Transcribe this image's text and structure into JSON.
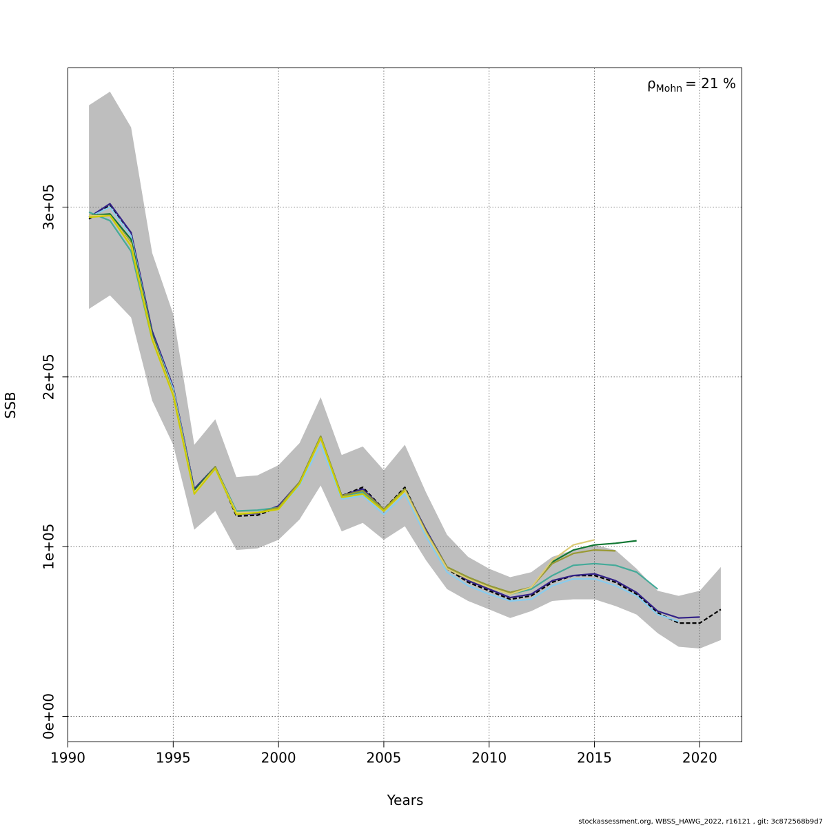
{
  "chart_data": {
    "type": "line",
    "title": "",
    "xlabel": "Years",
    "ylabel": "SSB",
    "xlim": [
      1990,
      2022
    ],
    "ylim": [
      -15000,
      382000
    ],
    "x_ticks": [
      1990,
      1995,
      2000,
      2005,
      2010,
      2015,
      2020
    ],
    "x_tick_labels": [
      "1990",
      "1995",
      "2000",
      "2005",
      "2010",
      "2015",
      "2020"
    ],
    "y_ticks": [
      0,
      100000,
      200000,
      300000
    ],
    "y_tick_labels": [
      "0e+00",
      "1e+05",
      "2e+05",
      "3e+05"
    ],
    "grid": true,
    "annotation": {
      "rho_symbol": "ρ",
      "rho_subscript": "Mohn",
      "rho_value": "= 21 %"
    },
    "confidence_band": {
      "color": "#bebebe",
      "x": [
        1991,
        1992,
        1993,
        1994,
        1995,
        1996,
        1997,
        1998,
        1999,
        2000,
        2001,
        2002,
        2003,
        2004,
        2005,
        2006,
        2007,
        2008,
        2009,
        2010,
        2011,
        2012,
        2013,
        2014,
        2015,
        2016,
        2017,
        2018,
        2019,
        2020,
        2021
      ],
      "lower": [
        240000,
        248000,
        235000,
        186000,
        160000,
        110000,
        121000,
        98000,
        99000,
        104000,
        116000,
        136000,
        109000,
        114000,
        104000,
        112000,
        92000,
        75000,
        68000,
        63000,
        58000,
        62000,
        68000,
        69000,
        69000,
        65000,
        60000,
        49000,
        41000,
        40000,
        45000
      ],
      "upper": [
        360000,
        368000,
        347000,
        273000,
        237000,
        160000,
        175000,
        141000,
        142000,
        148000,
        161000,
        188000,
        154000,
        159000,
        145000,
        160000,
        132000,
        107000,
        94000,
        87000,
        82000,
        85000,
        94000,
        98000,
        101000,
        98000,
        87000,
        74000,
        71000,
        74000,
        88000
      ]
    },
    "series": [
      {
        "color": "#000000",
        "dashed": true,
        "x": [
          1991,
          1992,
          1993,
          1994,
          1995,
          1996,
          1997,
          1998,
          1999,
          2000,
          2001,
          2002,
          2003,
          2004,
          2005,
          2006,
          2007,
          2008,
          2009,
          2010,
          2011,
          2012,
          2013,
          2014,
          2015,
          2016,
          2017,
          2018,
          2019,
          2020,
          2021
        ],
        "y": [
          293000,
          301000,
          285000,
          226000,
          194000,
          134000,
          147000,
          118000,
          118500,
          123000,
          138000,
          164000,
          130000,
          135000,
          122000,
          135000,
          109000,
          87000,
          79000,
          74000,
          69000,
          71000,
          79000,
          83000,
          83000,
          79000,
          72000,
          61000,
          55000,
          55000,
          63000
        ]
      },
      {
        "color": "#332288",
        "x": [
          1991,
          1992,
          1993,
          1994,
          1995,
          1996,
          1997,
          1998,
          1999,
          2000,
          2001,
          2002,
          2003,
          2004,
          2005,
          2006,
          2007,
          2008,
          2009,
          2010,
          2011,
          2012,
          2013,
          2014,
          2015,
          2016,
          2017,
          2018,
          2019,
          2020
        ],
        "y": [
          294000,
          302000,
          285000,
          227000,
          194000,
          134000,
          147000,
          119000,
          119500,
          124000,
          138000,
          164000,
          130000,
          134000,
          122000,
          134000,
          110000,
          88000,
          80000,
          75000,
          70000,
          72000,
          80000,
          83000,
          84000,
          80000,
          73000,
          62000,
          58000,
          58500
        ]
      },
      {
        "color": "#88ccee",
        "x": [
          1991,
          1992,
          1993,
          1994,
          1995,
          1996,
          1997,
          1998,
          1999,
          2000,
          2001,
          2002,
          2003,
          2004,
          2005,
          2006,
          2007,
          2008,
          2009,
          2010,
          2011,
          2012,
          2013,
          2014,
          2015,
          2016,
          2017,
          2018,
          2019
        ],
        "y": [
          294000,
          300000,
          283000,
          225000,
          193000,
          133000,
          146000,
          119000,
          120000,
          122000,
          136000,
          160000,
          128000,
          130000,
          119000,
          131000,
          106000,
          85000,
          77000,
          72000,
          68000,
          69000,
          77000,
          81000,
          81000,
          77000,
          71000,
          60000,
          56000
        ]
      },
      {
        "color": "#44aa99",
        "x": [
          1991,
          1992,
          1993,
          1994,
          1995,
          1996,
          1997,
          1998,
          1999,
          2000,
          2001,
          2002,
          2003,
          2004,
          2005,
          2006,
          2007,
          2008,
          2009,
          2010,
          2011,
          2012,
          2013,
          2014,
          2015,
          2016,
          2017,
          2018
        ],
        "y": [
          297000,
          292000,
          274000,
          222000,
          190000,
          133000,
          147000,
          121000,
          121500,
          123000,
          138000,
          165000,
          130000,
          132000,
          121000,
          134000,
          108000,
          87000,
          81000,
          76000,
          72000,
          75000,
          83000,
          89000,
          90000,
          89000,
          85000,
          75000
        ]
      },
      {
        "color": "#117733",
        "x": [
          1991,
          1992,
          1993,
          1994,
          1995,
          1996,
          1997,
          1998,
          1999,
          2000,
          2001,
          2002,
          2003,
          2004,
          2005,
          2006,
          2007,
          2008,
          2009,
          2010,
          2011,
          2012,
          2013,
          2014,
          2015,
          2016,
          2017
        ],
        "y": [
          295000,
          296000,
          281000,
          225000,
          191000,
          133000,
          147000,
          120000,
          120000,
          123000,
          138000,
          165000,
          130000,
          133000,
          122000,
          134000,
          109000,
          88000,
          82000,
          77000,
          73000,
          76000,
          91000,
          98000,
          101000,
          102000,
          103500
        ]
      },
      {
        "color": "#999933",
        "x": [
          1991,
          1992,
          1993,
          1994,
          1995,
          1996,
          1997,
          1998,
          1999,
          2000,
          2001,
          2002,
          2003,
          2004,
          2005,
          2006,
          2007,
          2008,
          2009,
          2010,
          2011,
          2012,
          2013,
          2014,
          2015,
          2016
        ],
        "y": [
          295000,
          295000,
          279000,
          224000,
          191000,
          132000,
          147000,
          120000,
          120000,
          123000,
          138000,
          165000,
          130000,
          133000,
          122000,
          134000,
          109000,
          88000,
          82000,
          77000,
          73000,
          76000,
          90000,
          96000,
          98000,
          97500
        ]
      },
      {
        "color": "#ddcc77",
        "x": [
          1991,
          1992,
          1993,
          1994,
          1995,
          1996,
          1997,
          1998,
          1999,
          2000,
          2001,
          2002,
          2003,
          2004,
          2005,
          2006,
          2007,
          2008,
          2009,
          2010,
          2011,
          2012,
          2013,
          2014,
          2015
        ],
        "y": [
          295000,
          295000,
          278000,
          223000,
          190000,
          132000,
          146000,
          120000,
          120000,
          122000,
          137000,
          164000,
          129000,
          131000,
          121000,
          133000,
          108000,
          87000,
          81000,
          76000,
          72000,
          76000,
          92000,
          101000,
          104000
        ]
      },
      {
        "color": "#cccc00",
        "x": [
          1991,
          1992,
          1993,
          1994,
          1995,
          1996,
          1997,
          1998,
          1999,
          2000,
          2001,
          2002,
          2003,
          2004,
          2005,
          2006
        ],
        "y": [
          294000,
          295000,
          277000,
          222000,
          189000,
          131000,
          146000,
          119000,
          120000,
          122000,
          137000,
          164000,
          129000,
          131000,
          121000,
          133000
        ]
      }
    ]
  },
  "footer": "stockassessment.org, WBSS_HAWG_2022, r16121 , git: 3c872568b9d7"
}
